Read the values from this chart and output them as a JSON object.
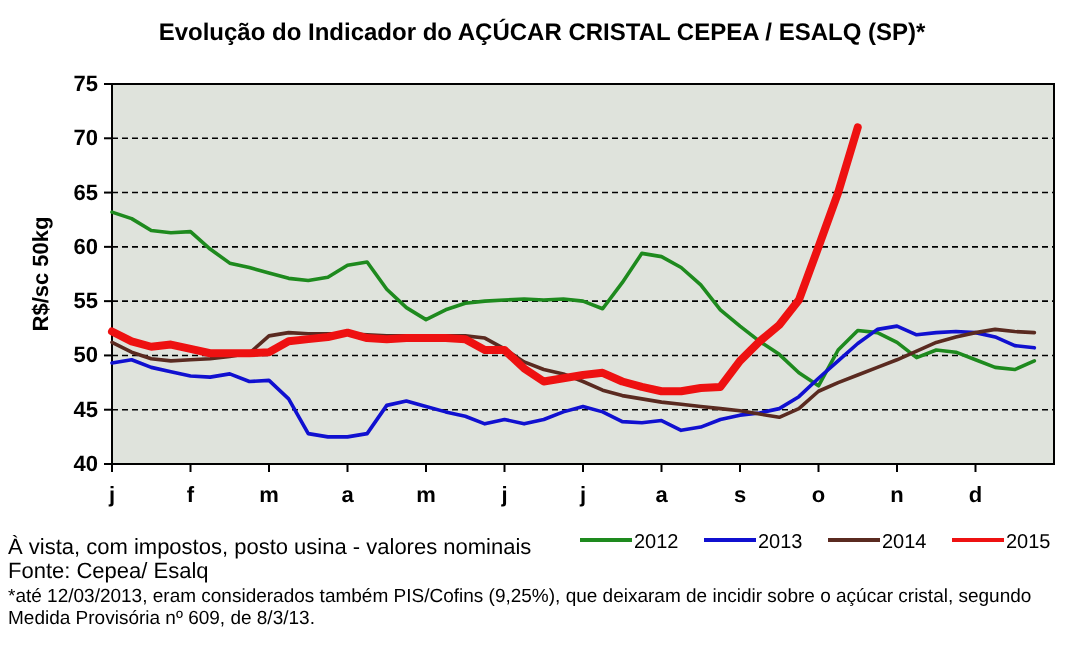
{
  "chart_data": {
    "type": "line",
    "title": "Evolução do Indicador do AÇÚCAR CRISTAL CEPEA / ESALQ  (SP)*",
    "ylabel": "R$/sc 50kg",
    "categories": [
      "j",
      null,
      null,
      null,
      "f",
      null,
      null,
      null,
      "m",
      null,
      null,
      null,
      "a",
      null,
      null,
      null,
      "m",
      null,
      null,
      null,
      "j",
      null,
      null,
      null,
      "j",
      null,
      null,
      null,
      "a",
      null,
      null,
      null,
      "s",
      null,
      null,
      null,
      "o",
      null,
      null,
      null,
      "n",
      null,
      null,
      null,
      "d",
      null,
      null,
      null
    ],
    "ylim": [
      40,
      75
    ],
    "yticks": [
      40,
      45,
      50,
      55,
      60,
      65,
      70,
      75
    ],
    "grid": "y",
    "legend": "bottom",
    "series": [
      {
        "name": "2012",
        "color": "#1e8a1e",
        "values": [
          63.2,
          62.6,
          61.5,
          61.3,
          61.4,
          59.8,
          58.5,
          58.1,
          57.6,
          57.1,
          56.9,
          57.2,
          58.3,
          58.6,
          56.1,
          54.4,
          53.3,
          54.2,
          54.8,
          55,
          55.1,
          55.2,
          55.1,
          55.2,
          55,
          54.3,
          56.7,
          59.4,
          59.1,
          58.1,
          56.5,
          54.2,
          52.7,
          51.3,
          50.1,
          48.4,
          47.2,
          50.5,
          52.3,
          52.1,
          51.2,
          49.8,
          50.5,
          50.3,
          49.6,
          48.9,
          48.7,
          49.5
        ]
      },
      {
        "name": "2013",
        "color": "#1010d0",
        "values": [
          49.3,
          49.6,
          48.9,
          48.5,
          48.1,
          48,
          48.3,
          47.6,
          47.7,
          46,
          42.8,
          42.5,
          42.5,
          42.8,
          45.4,
          45.8,
          45.3,
          44.8,
          44.4,
          43.7,
          44.1,
          43.7,
          44.1,
          44.8,
          45.3,
          44.8,
          43.9,
          43.8,
          44,
          43.1,
          43.4,
          44.1,
          44.5,
          44.7,
          45.1,
          46.2,
          47.9,
          49.5,
          51.1,
          52.4,
          52.7,
          51.9,
          52.1,
          52.2,
          52.1,
          51.7,
          50.9,
          50.7
        ]
      },
      {
        "name": "2014",
        "color": "#5a2a20",
        "values": [
          51.2,
          50.3,
          49.7,
          49.5,
          49.6,
          49.7,
          49.9,
          50.2,
          51.8,
          52.1,
          52,
          52,
          52,
          51.9,
          51.8,
          51.8,
          51.8,
          51.8,
          51.8,
          51.6,
          50.6,
          49.4,
          48.7,
          48.3,
          47.6,
          46.8,
          46.3,
          46,
          45.7,
          45.5,
          45.3,
          45.1,
          44.9,
          44.6,
          44.3,
          45.1,
          46.7,
          47.5,
          48.2,
          48.9,
          49.6,
          50.4,
          51.2,
          51.7,
          52.1,
          52.4,
          52.2,
          52.1
        ]
      },
      {
        "name": "2015",
        "color": "#ee1111",
        "values": [
          52.2,
          51.3,
          50.8,
          51,
          50.6,
          50.2,
          50.2,
          50.2,
          50.3,
          51.3,
          51.5,
          51.7,
          52.1,
          51.6,
          51.5,
          51.6,
          51.6,
          51.6,
          51.5,
          50.5,
          50.5,
          48.8,
          47.6,
          47.9,
          48.2,
          48.4,
          47.6,
          47.1,
          46.7,
          46.7,
          47,
          47.1,
          49.5,
          51.3,
          52.8,
          55.1,
          60,
          65,
          71,
          null,
          null,
          null,
          null,
          null,
          null,
          null,
          null,
          null
        ]
      }
    ],
    "annotations": [
      "À vista, com impostos, posto usina - valores nominais",
      "Fonte: Cepea/ Esalq",
      "*até 12/03/2013, eram considerados também PIS/Cofins (9,25%), que deixaram de incidir sobre o açúcar cristal, segundo Medida Provisória nº 609, de 8/3/13."
    ]
  }
}
